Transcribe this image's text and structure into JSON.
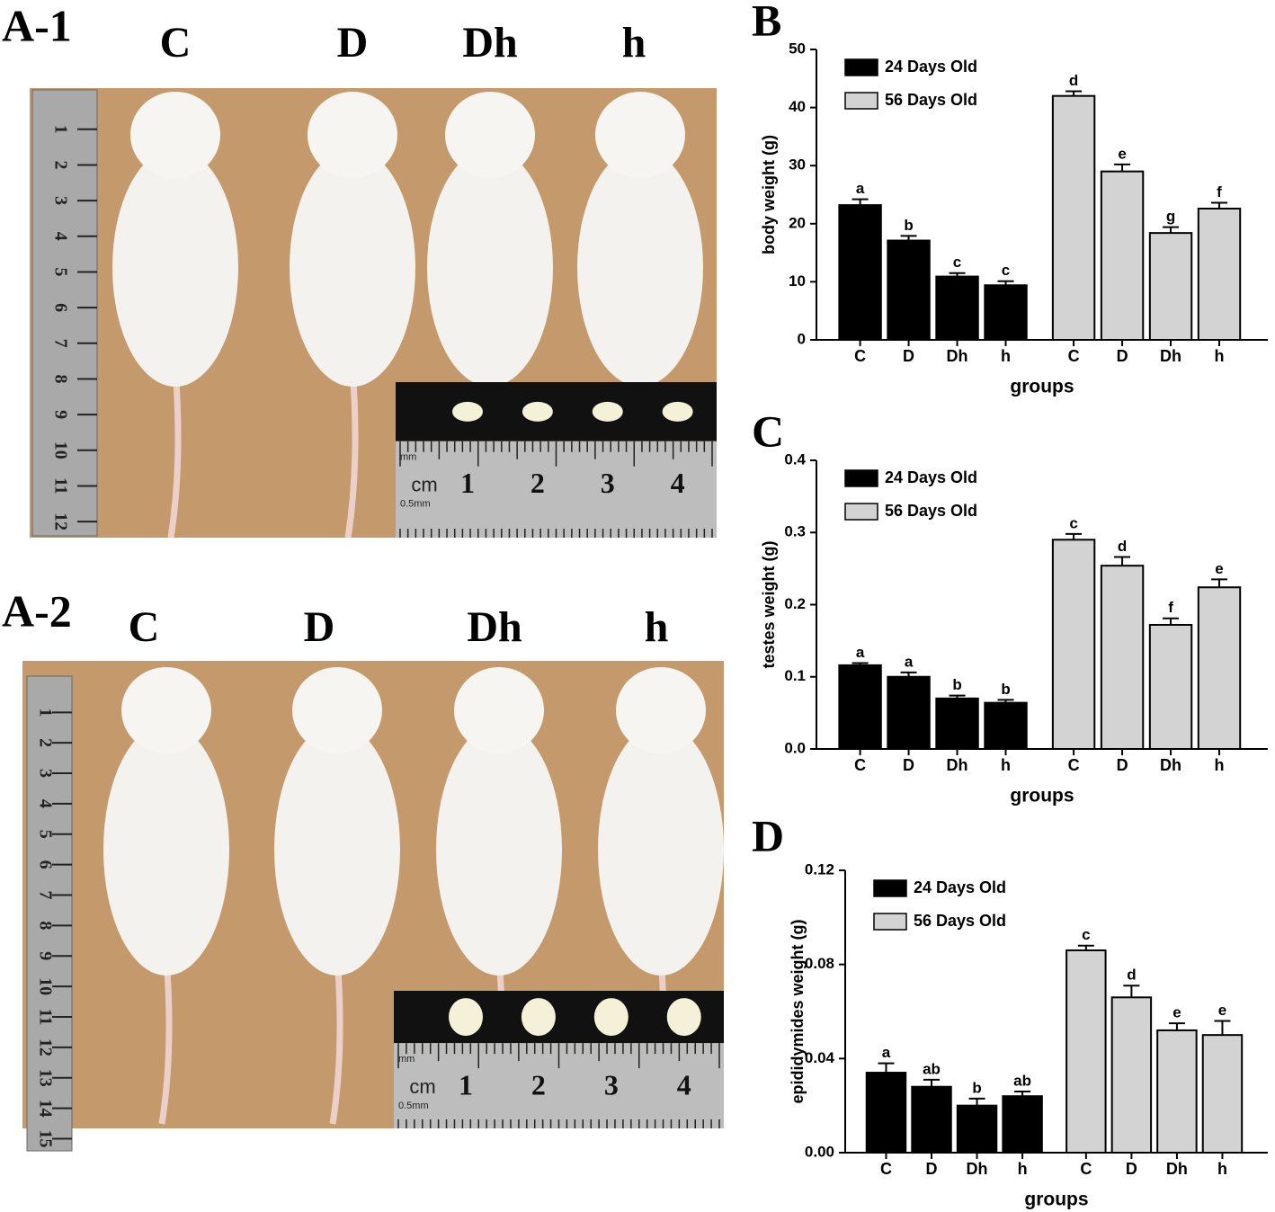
{
  "photos": [
    {
      "label": "A-1",
      "groups": [
        "C",
        "D",
        "Dh",
        "h"
      ],
      "ruler": [
        "1",
        "2",
        "3",
        "4",
        "5",
        "6",
        "7",
        "8",
        "9",
        "10",
        "11",
        "12"
      ],
      "inset": {
        "unit": "cm",
        "small_unit": "mm",
        "scale": "0.5mm",
        "marks": [
          "1",
          "2",
          "3",
          "4"
        ]
      }
    },
    {
      "label": "A-2",
      "groups": [
        "C",
        "D",
        "Dh",
        "h"
      ],
      "ruler": [
        "1",
        "2",
        "3",
        "4",
        "5",
        "6",
        "7",
        "8",
        "9",
        "10",
        "11",
        "12",
        "13",
        "14",
        "15"
      ],
      "inset": {
        "unit": "cm",
        "small_unit": "mm",
        "scale": "0.5mm",
        "marks": [
          "1",
          "2",
          "3",
          "4"
        ]
      }
    }
  ],
  "chart_data": [
    {
      "type": "bar",
      "panel_label": "B",
      "xlabel": "groups",
      "ylabel": "body weight (g)",
      "categories": [
        "C",
        "D",
        "Dh",
        "h",
        "C",
        "D",
        "Dh",
        "h"
      ],
      "series": [
        {
          "name": "24 Days Old",
          "color": "#000000",
          "values": [
            23.2,
            17.1,
            10.9,
            9.4,
            null,
            null,
            null,
            null
          ],
          "errors": [
            1.0,
            0.8,
            0.6,
            0.7,
            null,
            null,
            null,
            null
          ],
          "letters": [
            "a",
            "b",
            "c",
            "c",
            null,
            null,
            null,
            null
          ]
        },
        {
          "name": "56 Days Old",
          "color": "#d3d3d3",
          "values": [
            null,
            null,
            null,
            null,
            42.0,
            29.0,
            18.4,
            22.6
          ],
          "errors": [
            null,
            null,
            null,
            null,
            0.8,
            1.2,
            1.0,
            1.0
          ],
          "letters": [
            null,
            null,
            null,
            null,
            "d",
            "e",
            "g",
            "f"
          ]
        }
      ],
      "ylim": [
        0,
        50
      ],
      "yticks": [
        0,
        10,
        20,
        30,
        40,
        50
      ]
    },
    {
      "type": "bar",
      "panel_label": "C",
      "xlabel": "groups",
      "ylabel": "testes weight (g)",
      "categories": [
        "C",
        "D",
        "Dh",
        "h",
        "C",
        "D",
        "Dh",
        "h"
      ],
      "series": [
        {
          "name": "24 Days Old",
          "color": "#000000",
          "values": [
            0.116,
            0.1,
            0.07,
            0.064,
            null,
            null,
            null,
            null
          ],
          "errors": [
            0.003,
            0.006,
            0.004,
            0.004,
            null,
            null,
            null,
            null
          ],
          "letters": [
            "a",
            "a",
            "b",
            "b",
            null,
            null,
            null,
            null
          ]
        },
        {
          "name": "56 Days Old",
          "color": "#d3d3d3",
          "values": [
            null,
            null,
            null,
            null,
            0.29,
            0.254,
            0.172,
            0.224
          ],
          "errors": [
            null,
            null,
            null,
            null,
            0.008,
            0.012,
            0.009,
            0.011
          ],
          "letters": [
            null,
            null,
            null,
            null,
            "c",
            "d",
            "f",
            "e"
          ]
        }
      ],
      "ylim": [
        0,
        0.4
      ],
      "yticks": [
        {
          "value": 0,
          "label": "0.0"
        },
        0.1,
        0.2,
        0.3,
        0.4
      ]
    },
    {
      "type": "bar",
      "panel_label": "D",
      "xlabel": "groups",
      "ylabel": "epididymides weight (g)",
      "categories": [
        "C",
        "D",
        "Dh",
        "h",
        "C",
        "D",
        "Dh",
        "h"
      ],
      "series": [
        {
          "name": "24 Days Old",
          "color": "#000000",
          "values": [
            0.034,
            0.028,
            0.02,
            0.024,
            null,
            null,
            null,
            null
          ],
          "errors": [
            0.004,
            0.003,
            0.003,
            0.002,
            null,
            null,
            null,
            null
          ],
          "letters": [
            "a",
            "ab",
            "b",
            "ab",
            null,
            null,
            null,
            null
          ]
        },
        {
          "name": "56 Days Old",
          "color": "#d3d3d3",
          "values": [
            null,
            null,
            null,
            null,
            0.086,
            0.066,
            0.052,
            0.05
          ],
          "errors": [
            null,
            null,
            null,
            null,
            0.002,
            0.005,
            0.003,
            0.006
          ],
          "letters": [
            null,
            null,
            null,
            null,
            "c",
            "d",
            "e",
            "e"
          ]
        }
      ],
      "ylim": [
        0,
        0.12
      ],
      "yticks": [
        {
          "value": 0,
          "label": "0.00"
        },
        0.04,
        0.08,
        0.12
      ]
    }
  ]
}
